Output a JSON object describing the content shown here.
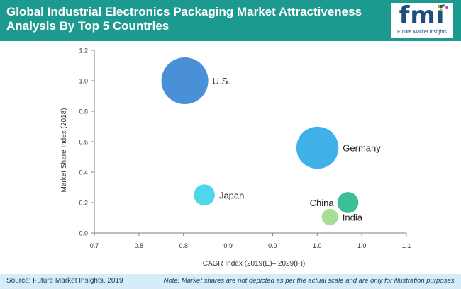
{
  "header": {
    "title": "Global Industrial Electronics Packaging Market Attractiveness Analysis By Top 5 Countries",
    "logo_text": "fmi",
    "logo_subtitle": "Future Market Insights"
  },
  "footer": {
    "source": "Source: Future Market Insights, 2019",
    "note": "Note: Market shares are not depicted as per the actual scale and are only for illustration purposes."
  },
  "colors": {
    "header_bg": "#1c9a8f",
    "footer_bg": "#d6ecf6",
    "axis": "#7f7f7f"
  },
  "chart_data": {
    "type": "scatter",
    "title": "",
    "xlabel": "CAGR Index (2019(E)– 2029(F))",
    "ylabel": "Market Share Index (2018)",
    "xlim": [
      0.7,
      1.1
    ],
    "ylim": [
      0.0,
      1.2
    ],
    "xticks": [
      "0.7",
      "0.8",
      "0.8",
      "0.9",
      "0.9",
      "1.0",
      "1.0",
      "1.1"
    ],
    "yticks": [
      "0.0",
      "0.2",
      "0.4",
      "0.6",
      "0.8",
      "1.0",
      "1.2"
    ],
    "grid": false,
    "points": [
      {
        "name": "U.S.",
        "x": 0.816,
        "y": 1.0,
        "size": 1.0,
        "color": "#4a90d9",
        "label_side": "right"
      },
      {
        "name": "Germany",
        "x": 0.986,
        "y": 0.56,
        "size": 0.9,
        "color": "#3fb1e8",
        "label_side": "right"
      },
      {
        "name": "Japan",
        "x": 0.841,
        "y": 0.25,
        "size": 0.45,
        "color": "#4fd6e8",
        "label_side": "right"
      },
      {
        "name": "China",
        "x": 1.025,
        "y": 0.2,
        "size": 0.45,
        "color": "#3cbf98",
        "label_side": "left"
      },
      {
        "name": "India",
        "x": 1.002,
        "y": 0.105,
        "size": 0.35,
        "color": "#a6de94",
        "label_side": "right"
      }
    ]
  }
}
